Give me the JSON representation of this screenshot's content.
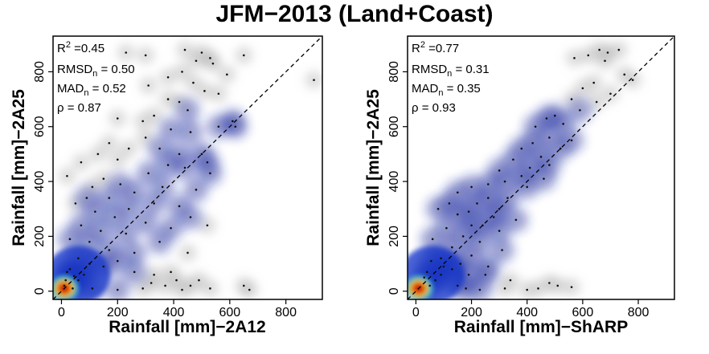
{
  "figure_title": "JFM−2013 (Land+Coast)",
  "chart_data": [
    {
      "type": "scatter",
      "title": "",
      "xlabel": "Rainfall [mm]−2A12",
      "ylabel": "Rainfall [mm]−2A25",
      "xlim": [
        -30,
        930
      ],
      "ylim": [
        -30,
        930
      ],
      "xticks": [
        0,
        200,
        400,
        600,
        800
      ],
      "yticks": [
        0,
        200,
        400,
        600,
        800
      ],
      "reference_line": "1:1 dashed",
      "density_shading": "blue-to-red kernel density, highest near origin",
      "stats": {
        "r2": {
          "name": "R",
          "sup": "2",
          "value": " =0.45"
        },
        "rmsd": {
          "name": "RMSD",
          "sub": "n",
          "value": " = 0.50"
        },
        "mad": {
          "name": "MAD",
          "sub": "n",
          "value": " = 0.52"
        },
        "rho": {
          "text": "ρ = 0.87"
        }
      },
      "points": [
        [
          230,
          870
        ],
        [
          300,
          860
        ],
        [
          440,
          880
        ],
        [
          500,
          870
        ],
        [
          650,
          860
        ],
        [
          530,
          850
        ],
        [
          900,
          770
        ],
        [
          540,
          830
        ],
        [
          480,
          840
        ],
        [
          430,
          800
        ],
        [
          590,
          790
        ],
        [
          380,
          780
        ],
        [
          470,
          760
        ],
        [
          310,
          750
        ],
        [
          510,
          730
        ],
        [
          560,
          720
        ],
        [
          380,
          700
        ],
        [
          420,
          690
        ],
        [
          450,
          660
        ],
        [
          330,
          640
        ],
        [
          200,
          630
        ],
        [
          290,
          620
        ],
        [
          610,
          620
        ],
        [
          560,
          600
        ],
        [
          390,
          590
        ],
        [
          620,
          600
        ],
        [
          460,
          580
        ],
        [
          300,
          560
        ],
        [
          170,
          540
        ],
        [
          240,
          520
        ],
        [
          350,
          520
        ],
        [
          420,
          500
        ],
        [
          500,
          500
        ],
        [
          130,
          500
        ],
        [
          70,
          470
        ],
        [
          200,
          480
        ],
        [
          520,
          470
        ],
        [
          380,
          460
        ],
        [
          440,
          450
        ],
        [
          310,
          430
        ],
        [
          530,
          430
        ],
        [
          20,
          420
        ],
        [
          150,
          410
        ],
        [
          110,
          380
        ],
        [
          210,
          390
        ],
        [
          360,
          380
        ],
        [
          480,
          370
        ],
        [
          260,
          360
        ],
        [
          170,
          340
        ],
        [
          90,
          340
        ],
        [
          50,
          320
        ],
        [
          330,
          320
        ],
        [
          420,
          310
        ],
        [
          240,
          300
        ],
        [
          120,
          290
        ],
        [
          190,
          270
        ],
        [
          460,
          270
        ],
        [
          300,
          250
        ],
        [
          520,
          240
        ],
        [
          70,
          240
        ],
        [
          390,
          230
        ],
        [
          140,
          220
        ],
        [
          230,
          210
        ],
        [
          30,
          190
        ],
        [
          100,
          180
        ],
        [
          350,
          180
        ],
        [
          170,
          150
        ],
        [
          260,
          140
        ],
        [
          450,
          140
        ],
        [
          60,
          120
        ],
        [
          200,
          110
        ],
        [
          150,
          90
        ],
        [
          330,
          60
        ],
        [
          410,
          40
        ],
        [
          30,
          80
        ],
        [
          390,
          70
        ],
        [
          490,
          40
        ],
        [
          260,
          70
        ],
        [
          320,
          30
        ],
        [
          370,
          20
        ],
        [
          530,
          10
        ],
        [
          200,
          5
        ],
        [
          290,
          10
        ],
        [
          430,
          5
        ],
        [
          460,
          20
        ],
        [
          650,
          20
        ],
        [
          670,
          5
        ],
        [
          110,
          10
        ],
        [
          40,
          10
        ],
        [
          15,
          40
        ],
        [
          10,
          20
        ],
        [
          45,
          55
        ],
        [
          80,
          60
        ],
        [
          100,
          100
        ],
        [
          60,
          40
        ],
        [
          20,
          70
        ]
      ]
    },
    {
      "type": "scatter",
      "title": "",
      "xlabel": "Rainfall [mm]−ShARP",
      "ylabel": "Rainfall [mm]−2A25",
      "xlim": [
        -30,
        930
      ],
      "ylim": [
        -30,
        930
      ],
      "xticks": [
        0,
        200,
        400,
        600,
        800
      ],
      "yticks": [
        0,
        200,
        400,
        600,
        800
      ],
      "reference_line": "1:1 dashed",
      "density_shading": "blue-to-red kernel density, highest near origin",
      "stats": {
        "r2": {
          "name": "R",
          "sup": "2",
          "value": " =0.77"
        },
        "rmsd": {
          "name": "RMSD",
          "sub": "n",
          "value": " = 0.31"
        },
        "mad": {
          "name": "MAD",
          "sub": "n",
          "value": " = 0.35"
        },
        "rho": {
          "text": "ρ = 0.93"
        }
      },
      "points": [
        [
          660,
          880
        ],
        [
          690,
          870
        ],
        [
          730,
          880
        ],
        [
          570,
          850
        ],
        [
          620,
          860
        ],
        [
          680,
          840
        ],
        [
          780,
          770
        ],
        [
          750,
          790
        ],
        [
          640,
          760
        ],
        [
          700,
          720
        ],
        [
          600,
          740
        ],
        [
          560,
          700
        ],
        [
          650,
          690
        ],
        [
          590,
          660
        ],
        [
          500,
          640
        ],
        [
          530,
          610
        ],
        [
          470,
          630
        ],
        [
          430,
          600
        ],
        [
          480,
          560
        ],
        [
          560,
          550
        ],
        [
          420,
          540
        ],
        [
          520,
          520
        ],
        [
          380,
          520
        ],
        [
          450,
          490
        ],
        [
          350,
          480
        ],
        [
          480,
          460
        ],
        [
          410,
          450
        ],
        [
          300,
          440
        ],
        [
          380,
          420
        ],
        [
          460,
          410
        ],
        [
          320,
          400
        ],
        [
          260,
          390
        ],
        [
          400,
          380
        ],
        [
          200,
          380
        ],
        [
          150,
          360
        ],
        [
          260,
          340
        ],
        [
          330,
          340
        ],
        [
          120,
          320
        ],
        [
          220,
          320
        ],
        [
          300,
          300
        ],
        [
          190,
          290
        ],
        [
          80,
          300
        ],
        [
          150,
          280
        ],
        [
          360,
          260
        ],
        [
          240,
          240
        ],
        [
          110,
          230
        ],
        [
          300,
          220
        ],
        [
          170,
          200
        ],
        [
          60,
          190
        ],
        [
          230,
          180
        ],
        [
          130,
          160
        ],
        [
          310,
          150
        ],
        [
          200,
          130
        ],
        [
          90,
          120
        ],
        [
          160,
          100
        ],
        [
          260,
          90
        ],
        [
          130,
          80
        ],
        [
          40,
          70
        ],
        [
          90,
          60
        ],
        [
          250,
          60
        ],
        [
          340,
          40
        ],
        [
          480,
          30
        ],
        [
          320,
          10
        ],
        [
          400,
          5
        ],
        [
          440,
          10
        ],
        [
          510,
          20
        ],
        [
          560,
          15
        ],
        [
          180,
          10
        ],
        [
          230,
          5
        ],
        [
          150,
          20
        ],
        [
          50,
          20
        ],
        [
          30,
          50
        ],
        [
          70,
          40
        ],
        [
          100,
          90
        ],
        [
          190,
          60
        ],
        [
          55,
          110
        ],
        [
          280,
          270
        ],
        [
          200,
          240
        ]
      ]
    }
  ]
}
